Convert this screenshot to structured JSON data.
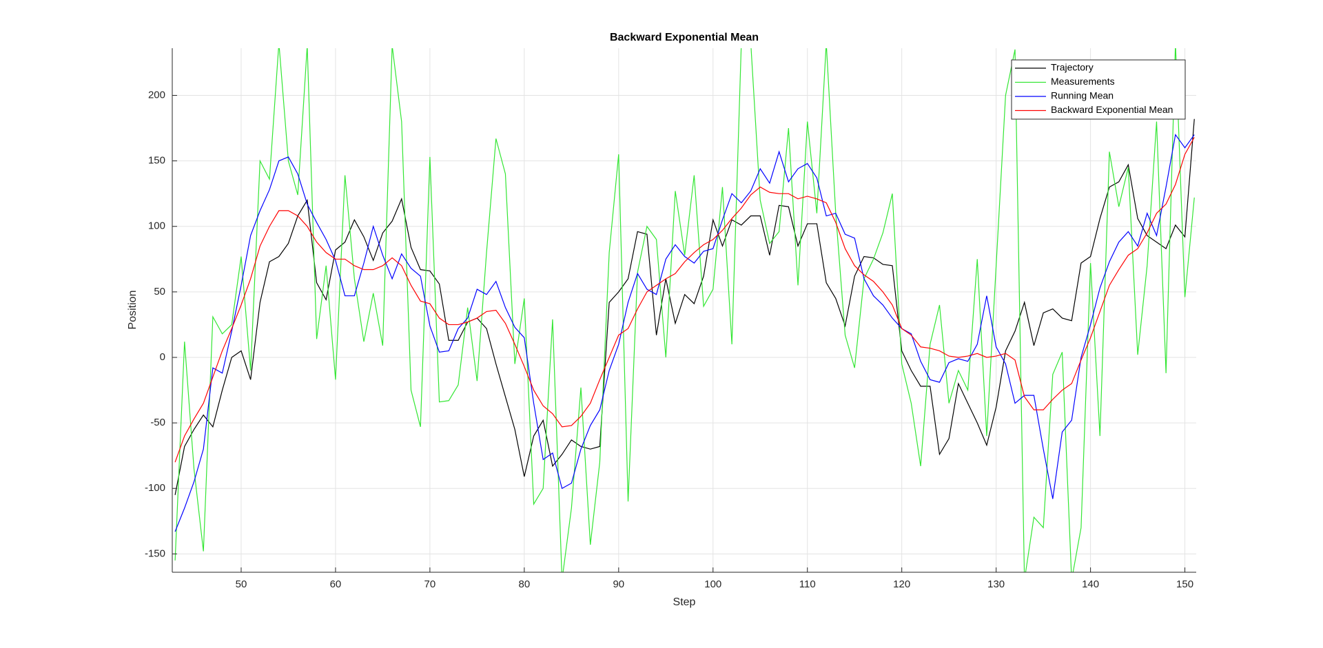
{
  "chart_data": {
    "type": "line",
    "title": "Backward Exponential Mean",
    "x_label": "Step",
    "y_label": "Position",
    "x": [
      43,
      44,
      45,
      46,
      47,
      48,
      49,
      50,
      51,
      52,
      53,
      54,
      55,
      56,
      57,
      58,
      59,
      60,
      61,
      62,
      63,
      64,
      65,
      66,
      67,
      68,
      69,
      70,
      71,
      72,
      73,
      74,
      75,
      76,
      77,
      78,
      79,
      80,
      81,
      82,
      83,
      84,
      85,
      86,
      87,
      88,
      89,
      90,
      91,
      92,
      93,
      94,
      95,
      96,
      97,
      98,
      99,
      100,
      101,
      102,
      103,
      104,
      105,
      106,
      107,
      108,
      109,
      110,
      111,
      112,
      113,
      114,
      115,
      116,
      117,
      118,
      119,
      120,
      121,
      122,
      123,
      124,
      125,
      126,
      127,
      128,
      129,
      130,
      131,
      132,
      133,
      134,
      135,
      136,
      137,
      138,
      139,
      140,
      141,
      142,
      143,
      144,
      145,
      146,
      147,
      148,
      149,
      150,
      151
    ],
    "series": [
      {
        "name": "Trajectory",
        "color": "#000000",
        "values": [
          -105,
          -68,
          -55,
          -44,
          -53,
          -25,
          0,
          5,
          -17,
          42,
          73,
          77,
          87,
          108,
          120,
          57,
          44,
          82,
          88,
          105,
          92,
          74,
          95,
          104,
          121,
          84,
          67,
          66,
          56,
          13,
          13,
          27,
          30,
          22,
          -5,
          -30,
          -55,
          -91,
          -60,
          -48,
          -83,
          -74,
          -63,
          -68,
          -70,
          -68,
          42,
          50,
          60,
          96,
          94,
          17,
          60,
          26,
          48,
          41,
          62,
          105,
          85,
          105,
          101,
          108,
          108,
          78,
          116,
          115,
          85,
          102,
          102,
          57,
          45,
          24,
          62,
          77,
          76,
          71,
          70,
          5,
          -10,
          -22,
          -22,
          -74,
          -62,
          -20,
          -35,
          -50,
          -67,
          -38,
          5,
          20,
          42,
          9,
          34,
          37,
          30,
          28,
          72,
          77,
          106,
          130,
          134,
          147,
          106,
          93,
          88,
          83,
          101,
          92,
          182
        ]
      },
      {
        "name": "Measurements",
        "color": "#33e633",
        "values": [
          -155,
          12,
          -85,
          -148,
          31,
          18,
          25,
          77,
          -10,
          150,
          136,
          240,
          150,
          124,
          238,
          14,
          70,
          -17,
          139,
          60,
          12,
          49,
          9,
          238,
          180,
          -25,
          -53,
          153,
          -34,
          -33,
          -21,
          38,
          -18,
          80,
          167,
          140,
          -5,
          45,
          -112,
          -100,
          29,
          -170,
          -115,
          -23,
          -143,
          -80,
          80,
          155,
          -110,
          65,
          100,
          90,
          0,
          127,
          78,
          139,
          39,
          52,
          130,
          10,
          240,
          240,
          120,
          87,
          96,
          175,
          55,
          180,
          110,
          240,
          110,
          17,
          -8,
          60,
          75,
          95,
          125,
          -5,
          -35,
          -83,
          10,
          40,
          -35,
          -10,
          -25,
          75,
          -60,
          70,
          200,
          235,
          -170,
          -122,
          -130,
          -13,
          4,
          -170,
          -130,
          72,
          -60,
          157,
          115,
          145,
          2,
          70,
          180,
          -12,
          240,
          46,
          122
        ]
      },
      {
        "name": "Running Mean",
        "color": "#0000ff",
        "values": [
          -133,
          -115,
          -95,
          -70,
          -8,
          -12,
          20,
          55,
          93,
          112,
          128,
          150,
          153,
          140,
          117,
          103,
          90,
          74,
          47,
          47,
          72,
          100,
          78,
          60,
          79,
          68,
          62,
          24,
          4,
          5,
          22,
          30,
          52,
          48,
          58,
          38,
          23,
          15,
          -35,
          -78,
          -73,
          -100,
          -96,
          -70,
          -52,
          -40,
          -10,
          10,
          42,
          64,
          52,
          48,
          75,
          86,
          77,
          72,
          81,
          83,
          105,
          125,
          118,
          127,
          144,
          133,
          157,
          134,
          144,
          148,
          137,
          108,
          110,
          94,
          91,
          60,
          47,
          40,
          30,
          22,
          18,
          -3,
          -17,
          -19,
          -4,
          -1,
          -3,
          10,
          47,
          8,
          -5,
          -35,
          -29,
          -29,
          -70,
          -108,
          -57,
          -48,
          0,
          25,
          53,
          73,
          88,
          96,
          85,
          110,
          93,
          130,
          170,
          160,
          170
        ]
      },
      {
        "name": "Backward Exponential Mean",
        "color": "#ff0000",
        "values": [
          -80,
          -60,
          -47,
          -35,
          -15,
          5,
          22,
          40,
          60,
          85,
          100,
          112,
          112,
          108,
          100,
          88,
          80,
          75,
          75,
          70,
          67,
          67,
          70,
          76,
          70,
          55,
          43,
          41,
          30,
          25,
          25,
          27,
          30,
          35,
          36,
          26,
          10,
          -7,
          -25,
          -37,
          -43,
          -53,
          -52,
          -45,
          -35,
          -17,
          0,
          17,
          22,
          37,
          50,
          55,
          60,
          64,
          73,
          80,
          86,
          90,
          97,
          106,
          114,
          124,
          130,
          126,
          125,
          125,
          121,
          123,
          121,
          118,
          103,
          83,
          70,
          63,
          58,
          50,
          40,
          22,
          17,
          8,
          7,
          5,
          1,
          0,
          1,
          3,
          0,
          1,
          3,
          -2,
          -30,
          -40,
          -40,
          -32,
          -25,
          -20,
          -2,
          15,
          35,
          55,
          67,
          78,
          83,
          95,
          110,
          117,
          132,
          155,
          168
        ]
      }
    ],
    "xlim": [
      42.7,
      151.2
    ],
    "ylim": [
      -164,
      236
    ],
    "xticks": [
      50,
      60,
      70,
      80,
      90,
      100,
      110,
      120,
      130,
      140,
      150
    ],
    "yticks": [
      -150,
      -100,
      -50,
      0,
      50,
      100,
      150,
      200
    ],
    "grid": true,
    "legend_position": "top-right"
  }
}
